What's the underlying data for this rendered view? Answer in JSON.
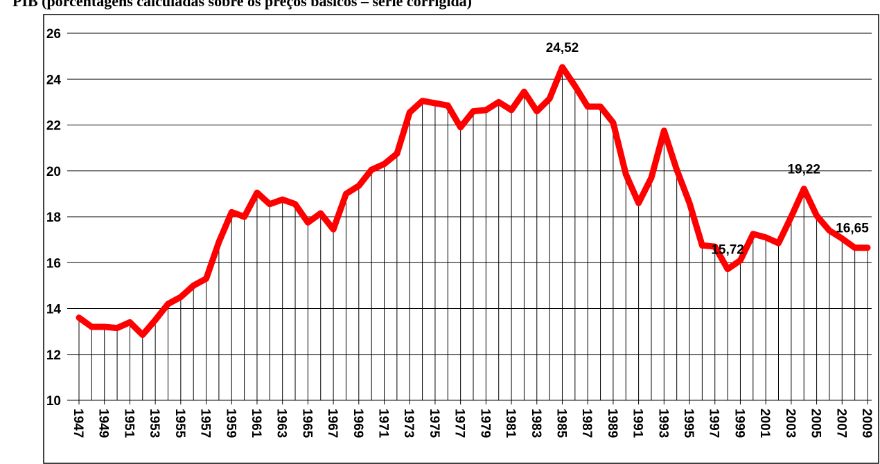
{
  "chart_data": {
    "type": "line",
    "title": "PIB (porcentagens calculadas sobre os preços básicos – série corrigida)",
    "x": [
      1947,
      1948,
      1949,
      1950,
      1951,
      1952,
      1953,
      1954,
      1955,
      1956,
      1957,
      1958,
      1959,
      1960,
      1961,
      1962,
      1963,
      1964,
      1965,
      1966,
      1967,
      1968,
      1969,
      1970,
      1971,
      1972,
      1973,
      1974,
      1975,
      1976,
      1977,
      1978,
      1979,
      1980,
      1981,
      1982,
      1983,
      1984,
      1985,
      1986,
      1987,
      1988,
      1989,
      1990,
      1991,
      1992,
      1993,
      1994,
      1995,
      1996,
      1997,
      1998,
      1999,
      2000,
      2001,
      2002,
      2003,
      2004,
      2005,
      2006,
      2007,
      2008,
      2009
    ],
    "values": [
      13.6,
      13.2,
      13.2,
      13.15,
      13.4,
      12.85,
      13.5,
      14.2,
      14.5,
      15.0,
      15.3,
      16.9,
      18.2,
      18.0,
      19.05,
      18.55,
      18.75,
      18.55,
      17.75,
      18.15,
      17.45,
      19.0,
      19.35,
      20.05,
      20.3,
      20.75,
      22.55,
      23.05,
      22.95,
      22.85,
      21.9,
      22.6,
      22.65,
      23.0,
      22.65,
      23.45,
      22.6,
      23.15,
      24.52,
      23.7,
      22.8,
      22.8,
      22.1,
      19.85,
      18.6,
      19.7,
      21.75,
      20.05,
      18.6,
      16.75,
      16.7,
      15.72,
      16.1,
      17.25,
      17.1,
      16.85,
      18.0,
      19.22,
      18.05,
      17.4,
      17.05,
      16.65,
      16.65
    ],
    "value_labels": [
      null,
      null,
      null,
      null,
      null,
      null,
      null,
      null,
      null,
      null,
      null,
      null,
      null,
      null,
      null,
      null,
      null,
      null,
      null,
      null,
      null,
      null,
      null,
      null,
      null,
      null,
      null,
      null,
      null,
      null,
      null,
      null,
      null,
      null,
      null,
      null,
      null,
      null,
      "24,52",
      null,
      null,
      null,
      null,
      null,
      null,
      null,
      null,
      null,
      null,
      null,
      null,
      "15,72",
      null,
      null,
      null,
      null,
      null,
      "19,22",
      null,
      null,
      null,
      null,
      "16,65"
    ],
    "color": "#ff0000",
    "xlim": [
      1947,
      2009
    ],
    "xticks": [
      1947,
      1949,
      1951,
      1953,
      1955,
      1957,
      1959,
      1961,
      1963,
      1965,
      1967,
      1969,
      1971,
      1973,
      1975,
      1977,
      1979,
      1981,
      1983,
      1985,
      1987,
      1989,
      1991,
      1993,
      1995,
      1997,
      1999,
      2001,
      2003,
      2005,
      2007,
      2009
    ],
    "ylim": [
      10,
      26
    ],
    "yticks": [
      10,
      12,
      14,
      16,
      18,
      20,
      22,
      24,
      26
    ],
    "grid": true
  }
}
